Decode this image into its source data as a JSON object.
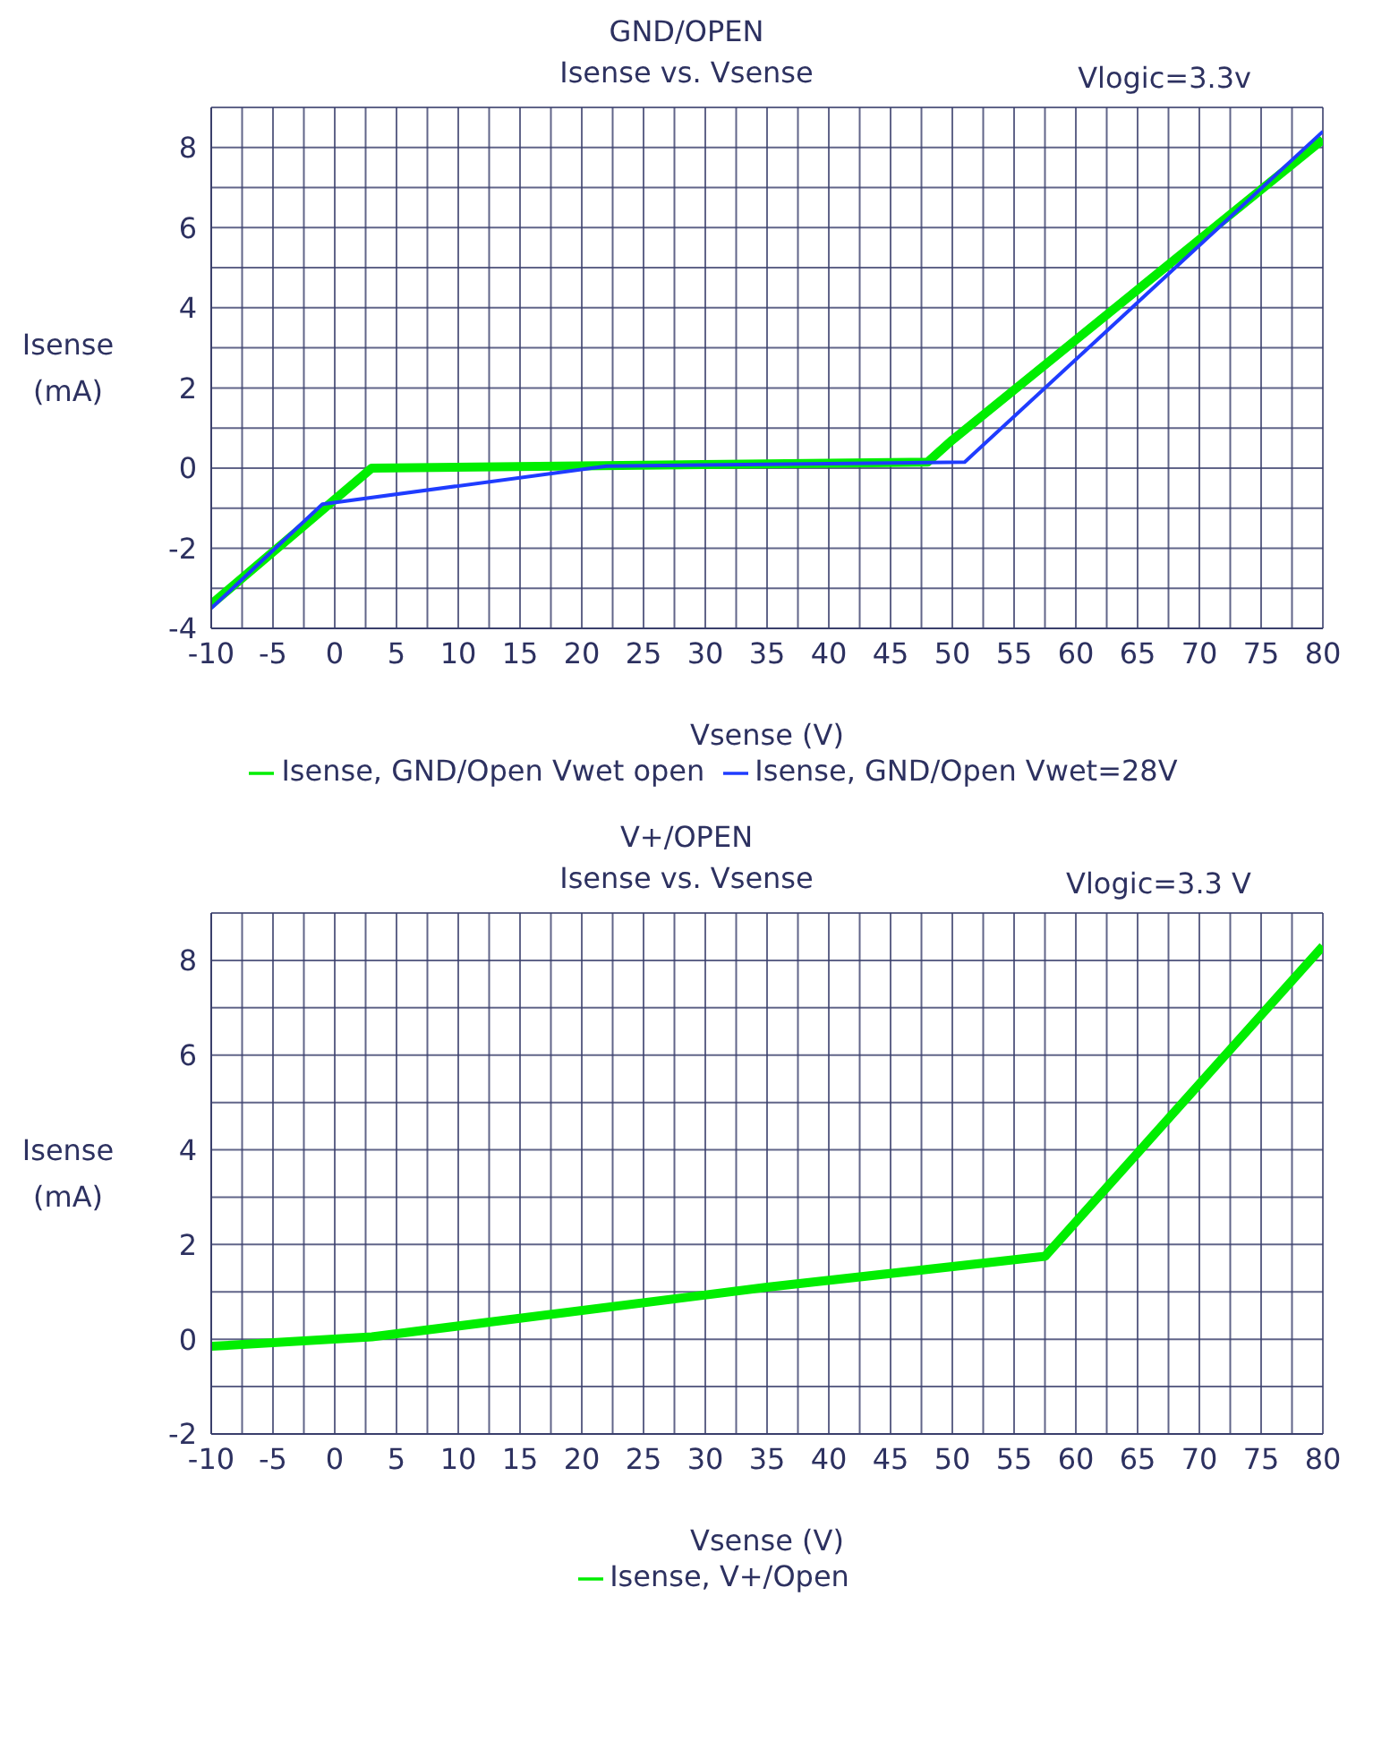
{
  "chart_data": [
    {
      "type": "line",
      "title": "GND/OPEN",
      "subtitle": "Isense vs. Vsense",
      "annotations": [
        "Vlogic=3.3v"
      ],
      "xlabel": "Vsense (V)",
      "ylabel": "Isense (mA)",
      "series": [
        {
          "name": "Isense, GND/Open Vwet=28V",
          "color": "#1f3cff",
          "x": [
            -10,
            -1,
            22,
            51,
            80
          ],
          "values": [
            -3.5,
            -0.9,
            0.05,
            0.15,
            8.4
          ]
        },
        {
          "name": "Isense, GND/Open Vwet open",
          "color": "#00ee00",
          "x": [
            -10,
            3,
            48,
            50,
            80
          ],
          "values": [
            -3.4,
            0,
            0.15,
            0.7,
            8.2
          ]
        }
      ],
      "xlim": [
        -10,
        80
      ],
      "xticks": [
        -10,
        {
          "value": -7.5,
          "label": null
        },
        -5,
        {
          "value": -2.5,
          "label": null
        },
        0,
        {
          "value": 2.5,
          "label": null
        },
        5,
        {
          "value": 7.5,
          "label": null
        },
        10,
        {
          "value": 12.5,
          "label": null
        },
        15,
        {
          "value": 17.5,
          "label": null
        },
        20,
        {
          "value": 22.5,
          "label": null
        },
        25,
        {
          "value": 27.5,
          "label": null
        },
        30,
        {
          "value": 32.5,
          "label": null
        },
        35,
        {
          "value": 37.5,
          "label": null
        },
        40,
        {
          "value": 42.5,
          "label": null
        },
        45,
        {
          "value": 47.5,
          "label": null
        },
        50,
        {
          "value": 52.5,
          "label": null
        },
        55,
        {
          "value": 57.5,
          "label": null
        },
        60,
        {
          "value": 62.5,
          "label": null
        },
        65,
        {
          "value": 67.5,
          "label": null
        },
        70,
        {
          "value": 72.5,
          "label": null
        },
        75,
        {
          "value": 77.5,
          "label": null
        },
        80
      ],
      "ylim": [
        -4,
        9
      ],
      "yticks": [
        -4,
        {
          "value": -3,
          "label": null
        },
        -2,
        {
          "value": -1,
          "label": null
        },
        0,
        {
          "value": 1,
          "label": null
        },
        2,
        {
          "value": 3,
          "label": null
        },
        4,
        {
          "value": 5,
          "label": null
        },
        6,
        {
          "value": 7,
          "label": null
        },
        8,
        {
          "value": 9,
          "label": null
        }
      ],
      "grid": true,
      "legend": "bottom",
      "marker": "none",
      "line_style": "solid"
    },
    {
      "type": "line",
      "title": "V+/OPEN",
      "subtitle": "Isense vs. Vsense",
      "annotations": [
        "Vlogic=3.3 V"
      ],
      "xlabel": "Vsense (V)",
      "ylabel": "Isense (mA)",
      "series": [
        {
          "name": "Isense, V+/Open",
          "color": "#00ee00",
          "x": [
            -10,
            3,
            35,
            57.5,
            80
          ],
          "values": [
            -0.15,
            0.05,
            1.1,
            1.75,
            8.3
          ]
        }
      ],
      "xlim": [
        -10,
        80
      ],
      "xticks": [
        -10,
        {
          "value": -7.5,
          "label": null
        },
        -5,
        {
          "value": -2.5,
          "label": null
        },
        0,
        {
          "value": 2.5,
          "label": null
        },
        5,
        {
          "value": 7.5,
          "label": null
        },
        10,
        {
          "value": 12.5,
          "label": null
        },
        15,
        {
          "value": 17.5,
          "label": null
        },
        20,
        {
          "value": 22.5,
          "label": null
        },
        25,
        {
          "value": 27.5,
          "label": null
        },
        30,
        {
          "value": 32.5,
          "label": null
        },
        35,
        {
          "value": 37.5,
          "label": null
        },
        40,
        {
          "value": 42.5,
          "label": null
        },
        45,
        {
          "value": 47.5,
          "label": null
        },
        50,
        {
          "value": 52.5,
          "label": null
        },
        55,
        {
          "value": 57.5,
          "label": null
        },
        60,
        {
          "value": 62.5,
          "label": null
        },
        65,
        {
          "value": 67.5,
          "label": null
        },
        70,
        {
          "value": 72.5,
          "label": null
        },
        75,
        {
          "value": 77.5,
          "label": null
        },
        80
      ],
      "ylim": [
        -2,
        9
      ],
      "yticks": [
        -2,
        {
          "value": -1,
          "label": null
        },
        0,
        {
          "value": 1,
          "label": null
        },
        2,
        {
          "value": 3,
          "label": null
        },
        4,
        {
          "value": 5,
          "label": null
        },
        6,
        {
          "value": 7,
          "label": null
        },
        8,
        {
          "value": 9,
          "label": null
        }
      ],
      "grid": true,
      "legend": "bottom",
      "marker": "none",
      "line_style": "solid"
    }
  ]
}
